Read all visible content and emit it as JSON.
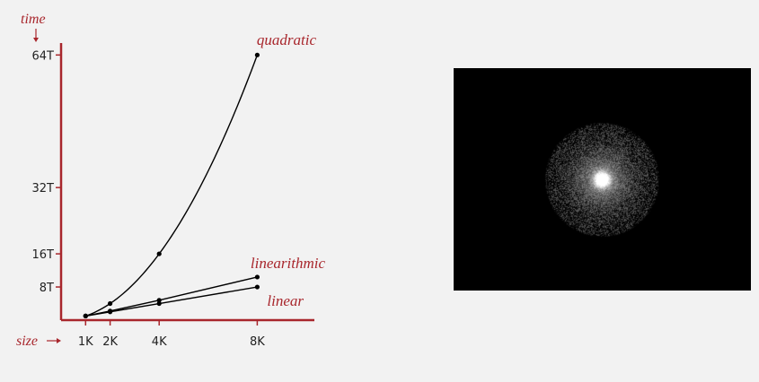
{
  "colors": {
    "axis": "#a8262c",
    "label": "#a8262c",
    "curve": "#000000",
    "tick_text": "#222222",
    "image_background": "#000000"
  },
  "chart_data": {
    "type": "line",
    "x": [
      1,
      2,
      4,
      8
    ],
    "x_tick_labels": [
      "1K",
      "2K",
      "4K",
      "8K"
    ],
    "y_tick_values": [
      8,
      16,
      32,
      64
    ],
    "y_tick_labels": [
      "8T",
      "16T",
      "32T",
      "64T"
    ],
    "xlabel": "size",
    "ylabel": "time",
    "xlim": [
      0,
      9
    ],
    "ylim": [
      0,
      64
    ],
    "grid": false,
    "legend": "labels at line ends",
    "series": [
      {
        "name": "quadratic",
        "values": [
          1,
          4,
          16,
          64
        ]
      },
      {
        "name": "linearithmic",
        "values": [
          1,
          2.2,
          4.8,
          10.4
        ]
      },
      {
        "name": "linear",
        "values": [
          1,
          2,
          4,
          8
        ]
      }
    ]
  },
  "image_panel": {
    "description_icon": "radial-glow-image",
    "glow_color": "#ffffff"
  }
}
